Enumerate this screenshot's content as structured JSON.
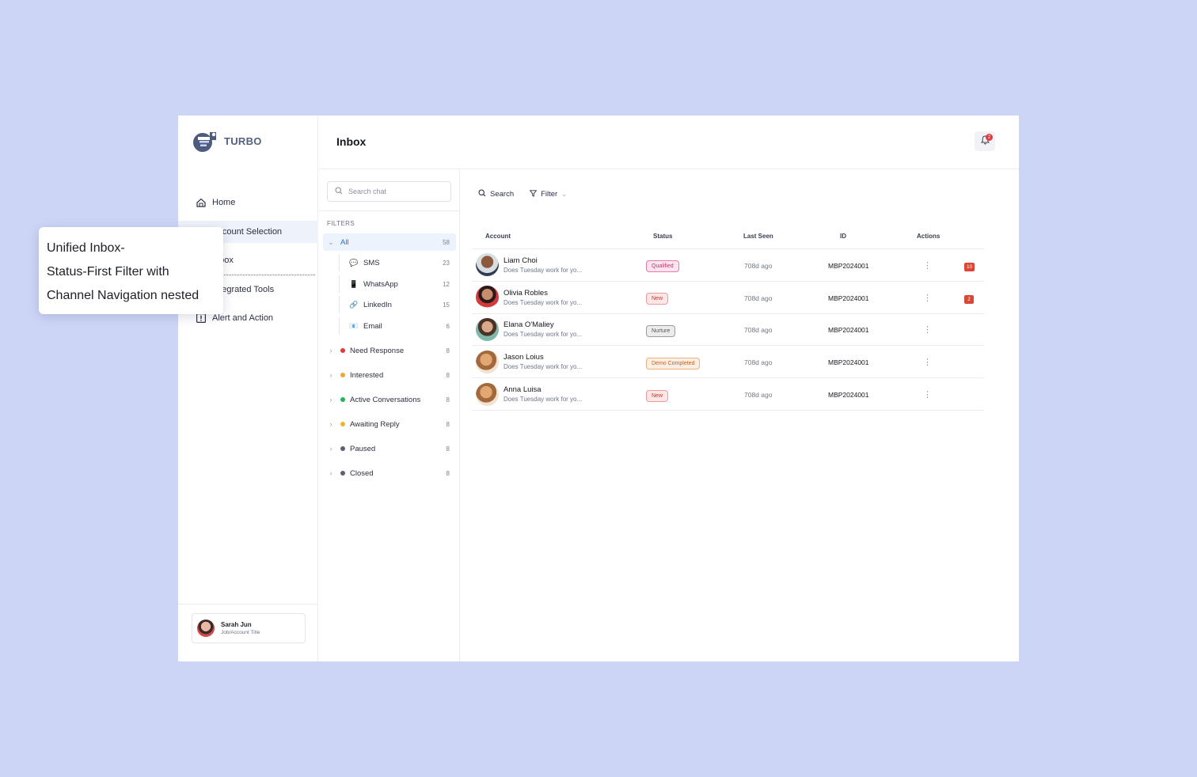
{
  "brand": {
    "name": "TURBO"
  },
  "sidebar": {
    "items": [
      {
        "label": "Home",
        "icon": "home-icon"
      },
      {
        "label": "Account Selection",
        "icon": "account-icon"
      },
      {
        "label": "Inbox",
        "icon": "inbox-icon"
      },
      {
        "label": "Integrated Tools",
        "icon": "tools-icon"
      },
      {
        "label": "Alert and Action",
        "icon": "alert-icon"
      }
    ],
    "profile": {
      "name": "Sarah Jun",
      "title": "Job/Account Title"
    }
  },
  "header": {
    "title": "Inbox",
    "notification_count": "2"
  },
  "filters": {
    "search_placeholder": "Search chat",
    "section_label": "FILTERS",
    "all": {
      "label": "All",
      "count": "58"
    },
    "channels": [
      {
        "label": "SMS",
        "count": "23",
        "icon": "chat-bubble-icon"
      },
      {
        "label": "WhatsApp",
        "count": "12",
        "icon": "phone-icon"
      },
      {
        "label": "LinkedIn",
        "count": "15",
        "icon": "link-icon"
      },
      {
        "label": "Email",
        "count": "6",
        "icon": "email-icon"
      }
    ],
    "statuses": [
      {
        "label": "Need Response",
        "count": "8",
        "color": "#e03a3a"
      },
      {
        "label": "Interested",
        "count": "8",
        "color": "#f2a33a"
      },
      {
        "label": "Active Conversations",
        "count": "8",
        "color": "#22b35b"
      },
      {
        "label": "Awaiting Reply",
        "count": "8",
        "color": "#f2b233"
      },
      {
        "label": "Paused",
        "count": "8",
        "color": "#5b6172"
      },
      {
        "label": "Closed",
        "count": "8",
        "color": "#5b6172"
      }
    ]
  },
  "toolbar": {
    "search_label": "Search",
    "filter_label": "Filter"
  },
  "table": {
    "columns": [
      "Account",
      "Status",
      "Last Seen",
      "ID",
      "Actions"
    ],
    "rows": [
      {
        "name": "Liam Choi",
        "preview": "Does Tuesday work for yo...",
        "status": "Qualified",
        "last_seen": "708d ago",
        "id": "MBP2024001",
        "badge": "10"
      },
      {
        "name": "Olivia Robles",
        "preview": "Does Tuesday work for yo...",
        "status": "New",
        "last_seen": "708d ago",
        "id": "MBP2024001",
        "badge": "2"
      },
      {
        "name": "Elana O'Maliey",
        "preview": "Does Tuesday work for yo...",
        "status": "Nurture",
        "last_seen": "708d ago",
        "id": "MBP2024001",
        "badge": ""
      },
      {
        "name": "Jason Loius",
        "preview": "Does Tuesday work for yo...",
        "status": "Demo Completed",
        "last_seen": "708d ago",
        "id": "MBP2024001",
        "badge": ""
      },
      {
        "name": "Anna Luisa",
        "preview": "Does Tuesday work for yo...",
        "status": "New",
        "last_seen": "708d ago",
        "id": "MBP2024001",
        "badge": ""
      }
    ]
  },
  "note": {
    "lines": [
      "Unified Inbox-",
      "Status-First Filter with",
      "Channel Navigation nested"
    ]
  }
}
